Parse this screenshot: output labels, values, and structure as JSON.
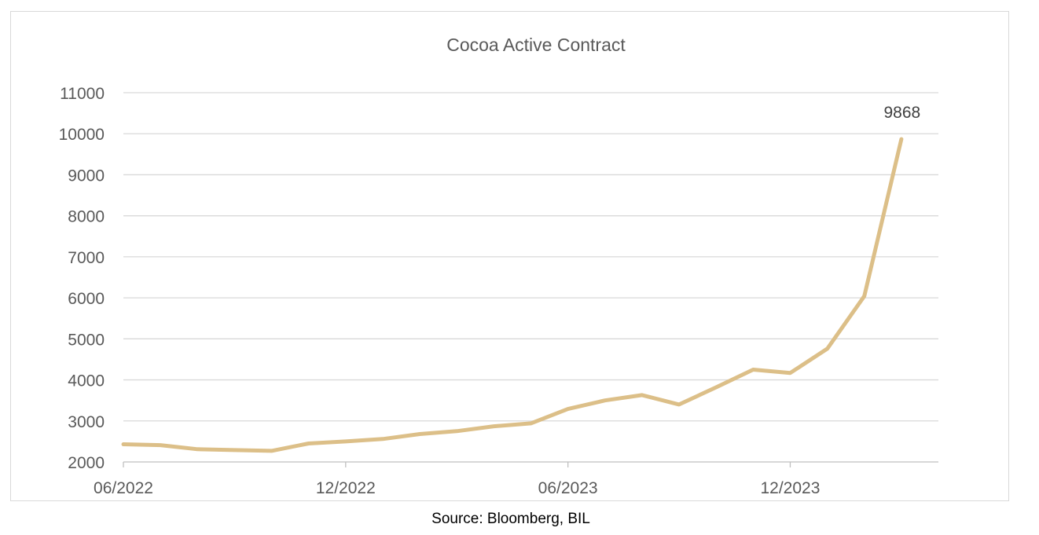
{
  "chart_data": {
    "type": "line",
    "title": "Cocoa Active Contract",
    "xlabel": "",
    "ylabel": "",
    "ylim": [
      2000,
      11000
    ],
    "yticks": [
      2000,
      3000,
      4000,
      5000,
      6000,
      7000,
      8000,
      9000,
      10000,
      11000
    ],
    "xrange": [
      "06/2022",
      "04/2024"
    ],
    "xticks": [
      "06/2022",
      "12/2022",
      "06/2023",
      "12/2023"
    ],
    "grid": true,
    "legend": "none",
    "line_color": "#dcbf88",
    "series": [
      {
        "x": [
          "06/2022",
          "07/2022",
          "08/2022",
          "09/2022",
          "10/2022",
          "11/2022",
          "12/2022",
          "01/2023",
          "02/2023",
          "03/2023",
          "04/2023",
          "05/2023",
          "06/2023",
          "07/2023",
          "08/2023",
          "09/2023",
          "10/2023",
          "11/2023",
          "12/2023",
          "01/2024",
          "02/2024",
          "03/2024"
        ],
        "values": [
          2430,
          2410,
          2310,
          2290,
          2270,
          2450,
          2500,
          2560,
          2680,
          2750,
          2870,
          2940,
          3290,
          3500,
          3630,
          3400,
          3820,
          4250,
          4170,
          4760,
          6040,
          9868
        ]
      }
    ],
    "annotations": [
      {
        "text": "9868",
        "x": "03/2024",
        "y": 9868
      }
    ]
  },
  "source": "Source: Bloomberg, BIL"
}
